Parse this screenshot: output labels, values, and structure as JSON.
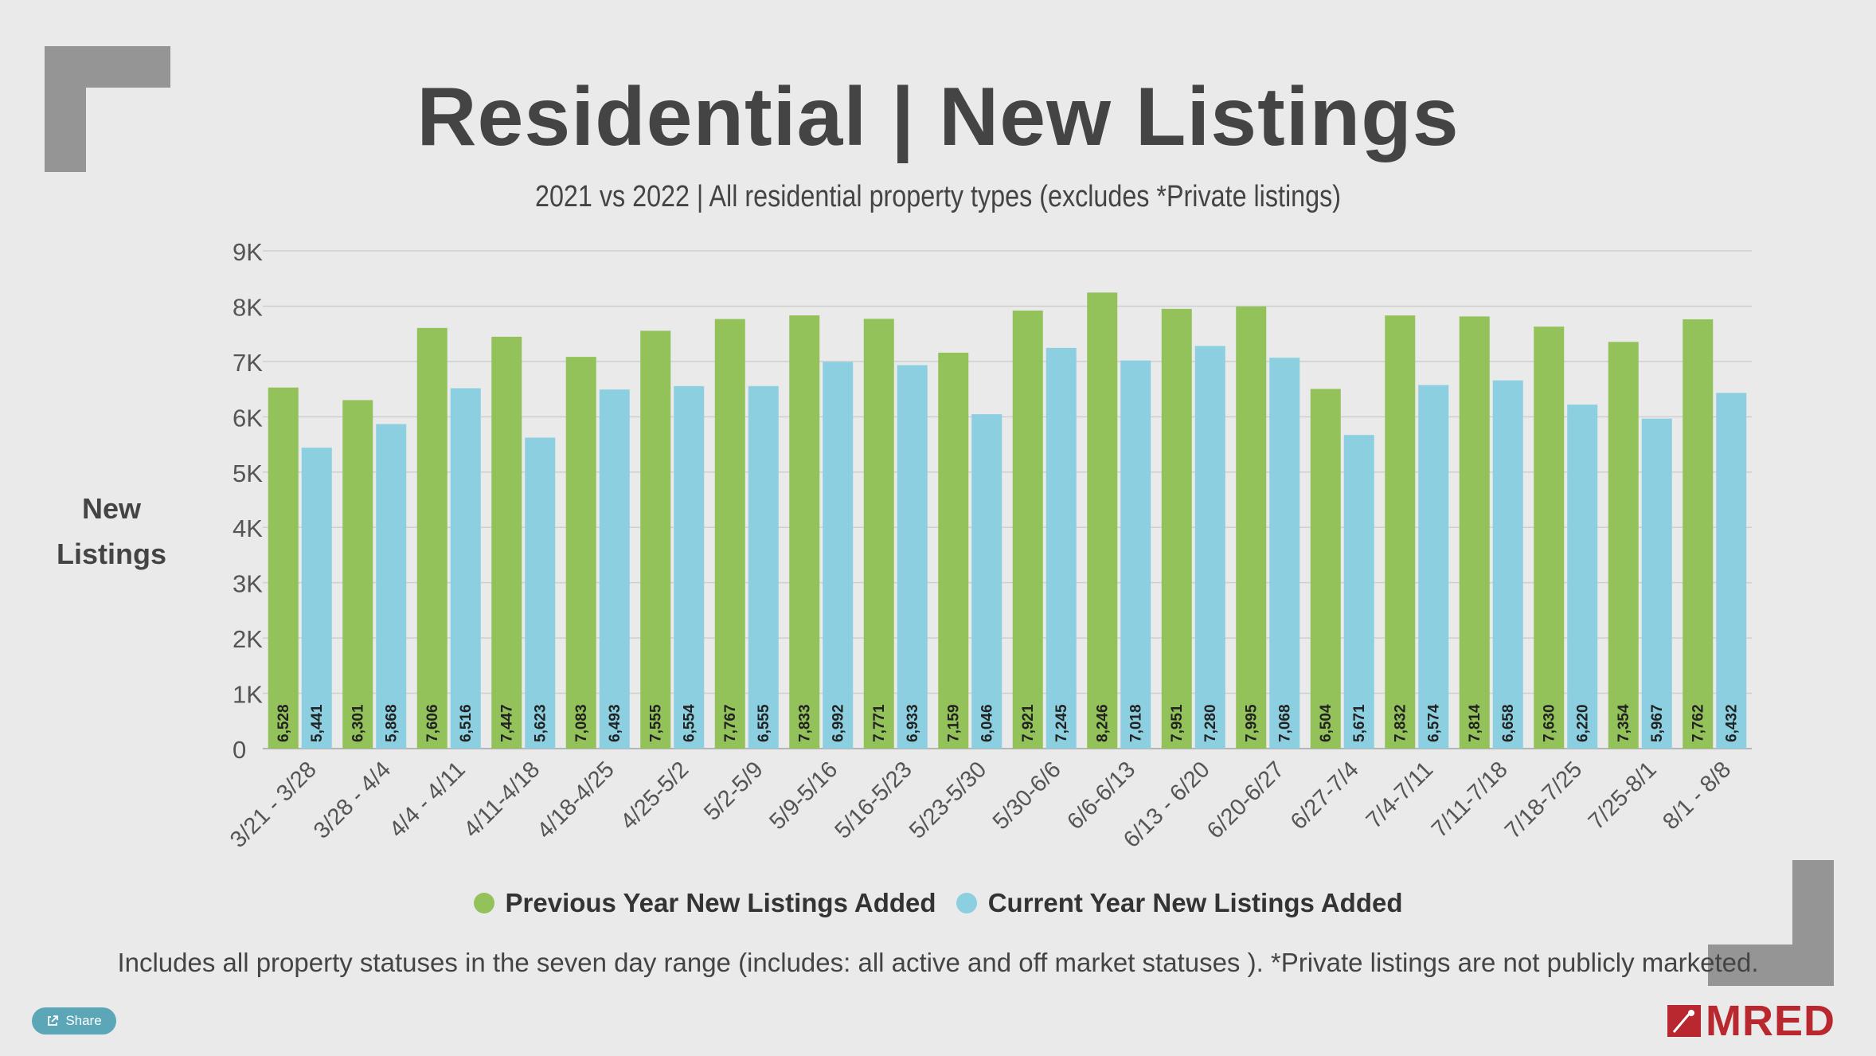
{
  "title": "Residential | New Listings",
  "subtitle": "2021 vs 2022 | All residential property types (excludes *Private listings)",
  "y_axis_label_line1": "New",
  "y_axis_label_line2": "Listings",
  "footer": "Includes all property statuses in the seven day range (includes: all active and off market statuses ).  *Private listings are not publicly marketed.",
  "share_label": "Share",
  "logo_text": "MRED",
  "colors": {
    "previous": "#93c15a",
    "current": "#8ccfe0",
    "text": "#444444",
    "brand": "#b9282f"
  },
  "chart_data": {
    "type": "bar",
    "title": "Residential | New Listings",
    "ylabel": "New Listings",
    "ylim": [
      0,
      9000
    ],
    "ytick_labels": [
      "0",
      "1K",
      "2K",
      "3K",
      "4K",
      "5K",
      "6K",
      "7K",
      "8K",
      "9K"
    ],
    "categories": [
      "3/21 - 3/28",
      "3/28 - 4/4",
      "4/4 - 4/11",
      "4/11-4/18",
      "4/18-4/25",
      "4/25-5/2",
      "5/2-5/9",
      "5/9-5/16",
      "5/16-5/23",
      "5/23-5/30",
      "5/30-6/6",
      "6/6-6/13",
      "6/13 - 6/20",
      "6/20-6/27",
      "6/27-7/4",
      "7/4-7/11",
      "7/11-7/18",
      "7/18-7/25",
      "7/25-8/1",
      "8/1 - 8/8"
    ],
    "series": [
      {
        "name": "Previous Year New Listings Added",
        "values": [
          6528,
          6301,
          7606,
          7447,
          7083,
          7555,
          7767,
          7833,
          7771,
          7159,
          7921,
          8246,
          7951,
          7995,
          6504,
          7832,
          7814,
          7630,
          7354,
          7762
        ],
        "labels": [
          "6,528",
          "6,301",
          "7,606",
          "7,447",
          "7,083",
          "7,555",
          "7,767",
          "7,833",
          "7,771",
          "7,159",
          "7,921",
          "8,246",
          "7,951",
          "7,995",
          "6,504",
          "7,832",
          "7,814",
          "7,630",
          "7,354",
          "7,762"
        ]
      },
      {
        "name": "Current Year New Listings Added",
        "values": [
          5441,
          5868,
          6516,
          5623,
          6493,
          6554,
          6555,
          6992,
          6933,
          6046,
          7245,
          7018,
          7280,
          7068,
          5671,
          6574,
          6658,
          6220,
          5967,
          6432
        ],
        "labels": [
          "5,441",
          "5,868",
          "6,516",
          "5,623",
          "6,493",
          "6,554",
          "6,555",
          "6,992",
          "6,933",
          "6,046",
          "7,245",
          "7,018",
          "7,280",
          "7,068",
          "5,671",
          "6,574",
          "6,658",
          "6,220",
          "5,967",
          "6,432"
        ]
      }
    ],
    "legend": [
      "Previous Year New Listings Added",
      "Current Year New Listings Added"
    ],
    "grid": true
  }
}
